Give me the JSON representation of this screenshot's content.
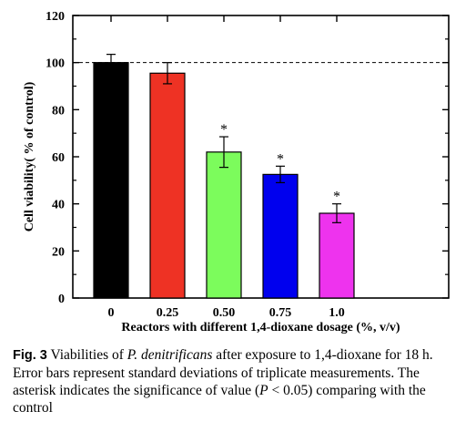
{
  "chart_data": {
    "type": "bar",
    "categories": [
      "0",
      "0.25",
      "0.50",
      "0.75",
      "1.0"
    ],
    "values": [
      100,
      95.5,
      62,
      52.5,
      36
    ],
    "errors": [
      3.5,
      4.5,
      6.5,
      3.5,
      4
    ],
    "significant": [
      false,
      false,
      true,
      true,
      true
    ],
    "bar_colors": [
      "#000000",
      "#ee3224",
      "#7cfc5c",
      "#0000ee",
      "#ee33ee"
    ],
    "xlabel": "Reactors with different 1,4-dioxane dosage (%, v/v)",
    "ylabel": "Cell viability( % of control)",
    "ylim": [
      0,
      120
    ],
    "yticks": [
      0,
      20,
      40,
      60,
      80,
      100,
      120
    ],
    "reference_line": 100,
    "grid": false,
    "legend": "none"
  },
  "caption": {
    "fig_label": "Fig. 3",
    "text_1": " Viabilities of ",
    "species": "P. denitrificans",
    "text_2": " after exposure to 1,4-dioxane for 18 h. Error bars represent standard deviations of triplicate measurements. The asterisk indicates the significance of value (",
    "p_symbol": "P",
    "text_3": " < 0.05) comparing with the control"
  }
}
